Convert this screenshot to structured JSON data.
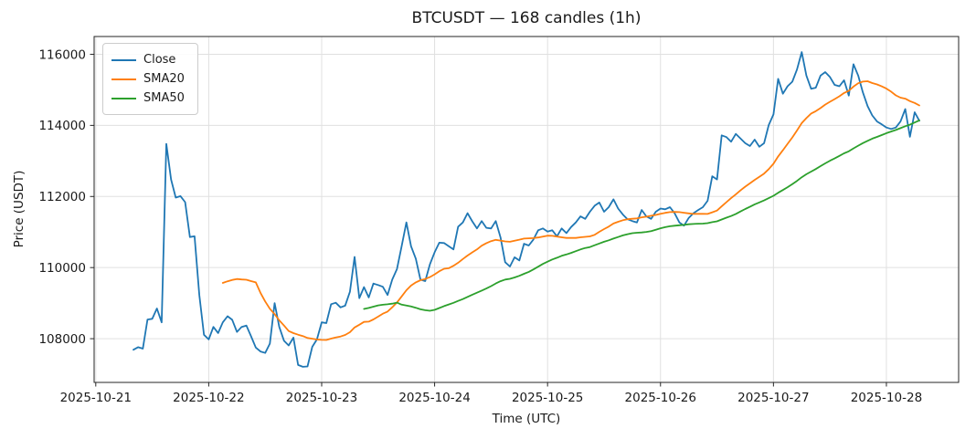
{
  "chart_data": {
    "type": "line",
    "title": "BTCUSDT — 168 candles (1h)",
    "xlabel": "Time (UTC)",
    "ylabel": "Price (USDT)",
    "grid": true,
    "legend_position": "upper left",
    "x_tick_labels": [
      "2025-10-21",
      "2025-10-22",
      "2025-10-23",
      "2025-10-24",
      "2025-10-25",
      "2025-10-26",
      "2025-10-27",
      "2025-10-28"
    ],
    "x_tick_interval_hours": 24,
    "data_start_hour": 8,
    "candle_interval_hours": 1,
    "candle_count": 168,
    "xlim_hours": [
      -0.35,
      183.35
    ],
    "ylim": [
      106770,
      116500
    ],
    "yticks": [
      108000,
      110000,
      112000,
      114000,
      116000
    ],
    "series": [
      {
        "name": "Close",
        "color": "#1f77b4",
        "values": [
          107690,
          107760,
          107720,
          108540,
          108560,
          108850,
          108460,
          113480,
          112480,
          111970,
          112010,
          111840,
          110860,
          110880,
          109230,
          108110,
          107980,
          108330,
          108160,
          108460,
          108630,
          108530,
          108190,
          108330,
          108370,
          108070,
          107750,
          107640,
          107600,
          107860,
          109000,
          108330,
          107940,
          107810,
          108030,
          107260,
          107210,
          107220,
          107770,
          107980,
          108460,
          108440,
          108970,
          109010,
          108880,
          108930,
          109320,
          110300,
          109140,
          109450,
          109160,
          109550,
          109510,
          109460,
          109230,
          109660,
          109960,
          110600,
          111270,
          110600,
          110250,
          109660,
          109620,
          110090,
          110430,
          110700,
          110690,
          110600,
          110510,
          111150,
          111270,
          111530,
          111300,
          111100,
          111310,
          111120,
          111100,
          111310,
          110850,
          110150,
          110030,
          110290,
          110200,
          110670,
          110620,
          110790,
          111050,
          111100,
          111010,
          111050,
          110880,
          111100,
          110970,
          111140,
          111270,
          111440,
          111370,
          111570,
          111740,
          111830,
          111570,
          111700,
          111920,
          111660,
          111490,
          111360,
          111310,
          111270,
          111620,
          111440,
          111370,
          111570,
          111660,
          111640,
          111700,
          111530,
          111270,
          111180,
          111400,
          111530,
          111620,
          111700,
          111880,
          112570,
          112480,
          113720,
          113670,
          113540,
          113760,
          113630,
          113500,
          113420,
          113600,
          113400,
          113500,
          114010,
          114310,
          115310,
          114890,
          115100,
          115230,
          115570,
          116060,
          115400,
          115030,
          115060,
          115400,
          115500,
          115360,
          115140,
          115100,
          115270,
          114840,
          115720,
          115400,
          114930,
          114540,
          114280,
          114110,
          114030,
          113940,
          113900,
          113940,
          114110,
          114460,
          113680,
          114370,
          114130
        ]
      },
      {
        "name": "SMA20",
        "color": "#ff7f0e",
        "derived_from": "Close",
        "sma_period": 20
      },
      {
        "name": "SMA50",
        "color": "#2ca02c",
        "derived_from": "Close",
        "sma_period": 50
      }
    ],
    "style": {
      "grid_color": "#e0e0e0",
      "spine_color": "#262626",
      "text_color": "#1a1a1a",
      "line_width": 1.8
    }
  }
}
